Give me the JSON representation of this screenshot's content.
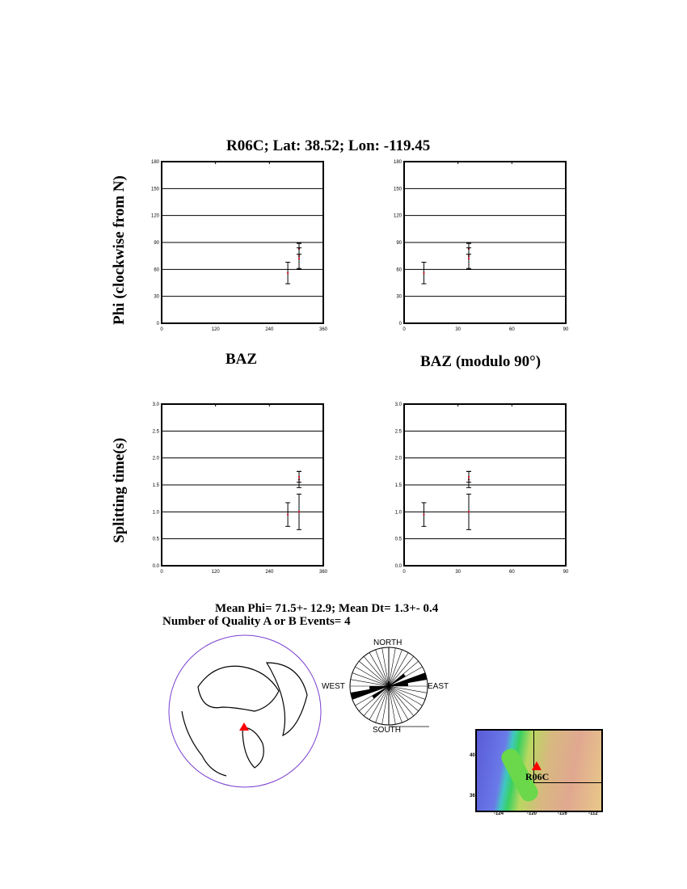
{
  "title": "R06C; Lat:  38.52;  Lon: -119.45",
  "ylabel_top": "Phi (clockwise from N)",
  "ylabel_bottom": "Splitting time(s)",
  "xlabel_left": "BAZ",
  "xlabel_right": "BAZ (modulo 90°)",
  "summary_line1": "Mean Phi= 71.5+- 12.9; Mean Dt=  1.3+-  0.4",
  "summary_line2": "Number of Quality A  or B Events=  4",
  "rose_labels": {
    "north": "NORTH",
    "south": "SOUTH",
    "east": "EAST",
    "west": "WEST"
  },
  "map": {
    "station": "R06C",
    "lat_ticks": [
      "40",
      "36"
    ],
    "lon_ticks": [
      "-124",
      "-120",
      "-116",
      "-112"
    ]
  },
  "colors": {
    "marker": "#e8102a",
    "globe_outline": "#7a3fd0",
    "station": "#ff0000"
  },
  "chart_data": [
    {
      "type": "scatter",
      "xlabel": "BAZ",
      "ylabel": "Phi (clockwise from N)",
      "xlim": [
        0,
        360
      ],
      "ylim": [
        0,
        180
      ],
      "xticks": [
        "0",
        "120",
        "240",
        "360"
      ],
      "yticks": [
        "0",
        "30",
        "60",
        "90",
        "120",
        "150",
        "180"
      ],
      "grid": "horizontal",
      "points": [
        {
          "x": 281,
          "y": 56,
          "err": 12
        },
        {
          "x": 306,
          "y": 83,
          "err": 6
        },
        {
          "x": 306,
          "y": 75,
          "err": 14
        },
        {
          "x": 306,
          "y": 72,
          "err": 12
        }
      ]
    },
    {
      "type": "scatter",
      "xlabel": "BAZ (modulo 90°)",
      "xlim": [
        0,
        90
      ],
      "ylim": [
        0,
        180
      ],
      "xticks": [
        "0",
        "30",
        "60",
        "90"
      ],
      "yticks": [
        "0",
        "30",
        "60",
        "90",
        "120",
        "150",
        "180"
      ],
      "grid": "horizontal",
      "points": [
        {
          "x": 11,
          "y": 56,
          "err": 12
        },
        {
          "x": 36,
          "y": 83,
          "err": 6
        },
        {
          "x": 36,
          "y": 75,
          "err": 14
        },
        {
          "x": 36,
          "y": 72,
          "err": 12
        }
      ]
    },
    {
      "type": "scatter",
      "ylabel": "Splitting time(s)",
      "xlim": [
        0,
        360
      ],
      "ylim": [
        0,
        3
      ],
      "xticks": [
        "0",
        "120",
        "240",
        "360"
      ],
      "yticks": [
        "0.0",
        "0.5",
        "1.0",
        "1.5",
        "2.0",
        "2.5",
        "3.0"
      ],
      "grid": "horizontal",
      "points": [
        {
          "x": 281,
          "y": 0.95,
          "err": 0.22
        },
        {
          "x": 306,
          "y": 1.6,
          "err": 0.15
        },
        {
          "x": 306,
          "y": 1.0,
          "err": 0.33
        },
        {
          "x": 306,
          "y": 1.65,
          "err": 0.1
        }
      ]
    },
    {
      "type": "scatter",
      "xlim": [
        0,
        90
      ],
      "ylim": [
        0,
        3
      ],
      "xticks": [
        "0",
        "30",
        "60",
        "90"
      ],
      "yticks": [
        "0.0",
        "0.5",
        "1.0",
        "1.5",
        "2.0",
        "2.5",
        "3.0"
      ],
      "grid": "horizontal",
      "points": [
        {
          "x": 11,
          "y": 0.95,
          "err": 0.22
        },
        {
          "x": 36,
          "y": 1.6,
          "err": 0.15
        },
        {
          "x": 36,
          "y": 1.0,
          "err": 0.33
        },
        {
          "x": 36,
          "y": 1.65,
          "err": 0.1
        }
      ]
    }
  ]
}
